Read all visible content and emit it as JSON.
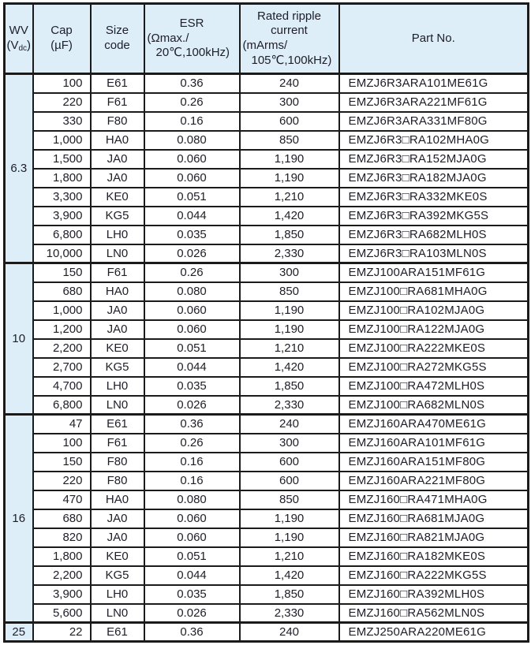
{
  "colors": {
    "header_bg": "#ddeef9",
    "border": "#1b1b1b",
    "text": "#20202a",
    "row_bg": "#ffffff"
  },
  "table": {
    "header": {
      "wv": {
        "line1": "WV",
        "line2_pre": "(V",
        "line2_sub": "dc",
        "line2_post": ")"
      },
      "cap": {
        "line1": "Cap",
        "line2": "(µF)"
      },
      "size": {
        "line1": "Size",
        "line2": "code"
      },
      "esr": {
        "line1": "ESR",
        "line2": "(Ωmax./",
        "line3": "20℃,100kHz)"
      },
      "ripple": {
        "line1": "Rated ripple",
        "line2": "current",
        "line3": "(mArms/",
        "line4": "105℃,100kHz)"
      },
      "part": {
        "line1": "Part No."
      }
    },
    "groups": [
      {
        "wv": "6.3",
        "rows": [
          {
            "cap": "100",
            "size": "E61",
            "esr": "0.36",
            "ripple": "240",
            "part": "EMZJ6R3ARA101ME61G"
          },
          {
            "cap": "220",
            "size": "F61",
            "esr": "0.26",
            "ripple": "300",
            "part": "EMZJ6R3ARA221MF61G"
          },
          {
            "cap": "330",
            "size": "F80",
            "esr": "0.16",
            "ripple": "600",
            "part": "EMZJ6R3ARA331MF80G"
          },
          {
            "cap": "1,000",
            "size": "HA0",
            "esr": "0.080",
            "ripple": "850",
            "part": "EMZJ6R3□RA102MHA0G"
          },
          {
            "cap": "1,500",
            "size": "JA0",
            "esr": "0.060",
            "ripple": "1,190",
            "part": "EMZJ6R3□RA152MJA0G"
          },
          {
            "cap": "1,800",
            "size": "JA0",
            "esr": "0.060",
            "ripple": "1,190",
            "part": "EMZJ6R3□RA182MJA0G"
          },
          {
            "cap": "3,300",
            "size": "KE0",
            "esr": "0.051",
            "ripple": "1,210",
            "part": "EMZJ6R3□RA332MKE0S"
          },
          {
            "cap": "3,900",
            "size": "KG5",
            "esr": "0.044",
            "ripple": "1,420",
            "part": "EMZJ6R3□RA392MKG5S"
          },
          {
            "cap": "6,800",
            "size": "LH0",
            "esr": "0.035",
            "ripple": "1,850",
            "part": "EMZJ6R3□RA682MLH0S"
          },
          {
            "cap": "10,000",
            "size": "LN0",
            "esr": "0.026",
            "ripple": "2,330",
            "part": "EMZJ6R3□RA103MLN0S"
          }
        ]
      },
      {
        "wv": "10",
        "rows": [
          {
            "cap": "150",
            "size": "F61",
            "esr": "0.26",
            "ripple": "300",
            "part": "EMZJ100ARA151MF61G"
          },
          {
            "cap": "680",
            "size": "HA0",
            "esr": "0.080",
            "ripple": "850",
            "part": "EMZJ100□RA681MHA0G"
          },
          {
            "cap": "1,000",
            "size": "JA0",
            "esr": "0.060",
            "ripple": "1,190",
            "part": "EMZJ100□RA102MJA0G"
          },
          {
            "cap": "1,200",
            "size": "JA0",
            "esr": "0.060",
            "ripple": "1,190",
            "part": "EMZJ100□RA122MJA0G"
          },
          {
            "cap": "2,200",
            "size": "KE0",
            "esr": "0.051",
            "ripple": "1,210",
            "part": "EMZJ100□RA222MKE0S"
          },
          {
            "cap": "2,700",
            "size": "KG5",
            "esr": "0.044",
            "ripple": "1,420",
            "part": "EMZJ100□RA272MKG5S"
          },
          {
            "cap": "4,700",
            "size": "LH0",
            "esr": "0.035",
            "ripple": "1,850",
            "part": "EMZJ100□RA472MLH0S"
          },
          {
            "cap": "6,800",
            "size": "LN0",
            "esr": "0.026",
            "ripple": "2,330",
            "part": "EMZJ100□RA682MLN0S"
          }
        ]
      },
      {
        "wv": "16",
        "rows": [
          {
            "cap": "47",
            "size": "E61",
            "esr": "0.36",
            "ripple": "240",
            "part": "EMZJ160ARA470ME61G"
          },
          {
            "cap": "100",
            "size": "F61",
            "esr": "0.26",
            "ripple": "300",
            "part": "EMZJ160ARA101MF61G"
          },
          {
            "cap": "150",
            "size": "F80",
            "esr": "0.16",
            "ripple": "600",
            "part": "EMZJ160ARA151MF80G"
          },
          {
            "cap": "220",
            "size": "F80",
            "esr": "0.16",
            "ripple": "600",
            "part": "EMZJ160ARA221MF80G"
          },
          {
            "cap": "470",
            "size": "HA0",
            "esr": "0.080",
            "ripple": "850",
            "part": "EMZJ160□RA471MHA0G"
          },
          {
            "cap": "680",
            "size": "JA0",
            "esr": "0.060",
            "ripple": "1,190",
            "part": "EMZJ160□RA681MJA0G"
          },
          {
            "cap": "820",
            "size": "JA0",
            "esr": "0.060",
            "ripple": "1,190",
            "part": "EMZJ160□RA821MJA0G"
          },
          {
            "cap": "1,800",
            "size": "KE0",
            "esr": "0.051",
            "ripple": "1,210",
            "part": "EMZJ160□RA182MKE0S"
          },
          {
            "cap": "2,200",
            "size": "KG5",
            "esr": "0.044",
            "ripple": "1,420",
            "part": "EMZJ160□RA222MKG5S"
          },
          {
            "cap": "3,900",
            "size": "LH0",
            "esr": "0.035",
            "ripple": "1,850",
            "part": "EMZJ160□RA392MLH0S"
          },
          {
            "cap": "5,600",
            "size": "LN0",
            "esr": "0.026",
            "ripple": "2,330",
            "part": "EMZJ160□RA562MLN0S"
          }
        ]
      },
      {
        "wv": "25",
        "rows": [
          {
            "cap": "22",
            "size": "E61",
            "esr": "0.36",
            "ripple": "240",
            "part": "EMZJ250ARA220ME61G"
          }
        ]
      }
    ]
  }
}
